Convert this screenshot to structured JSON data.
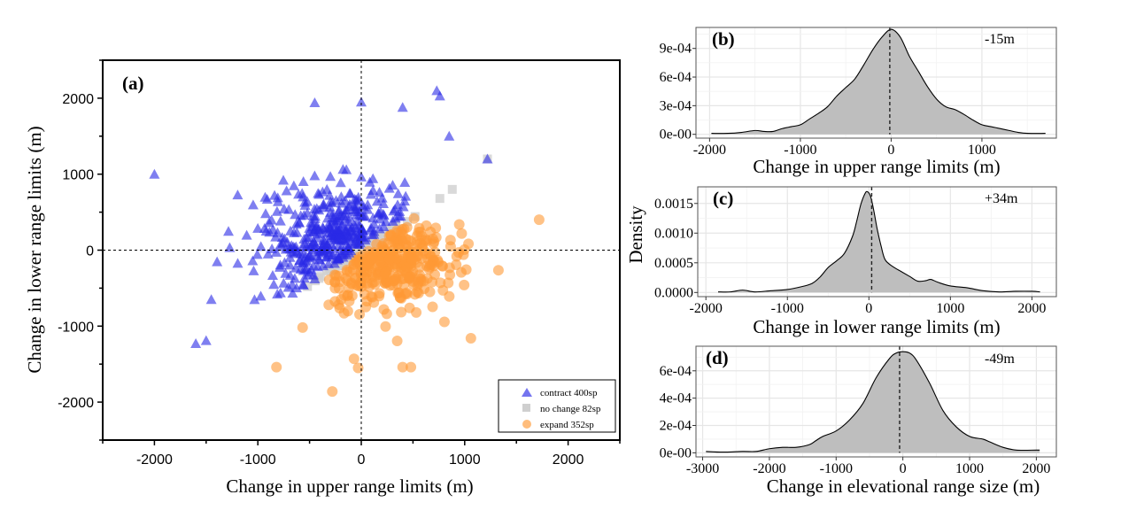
{
  "chart_data": [
    {
      "id": "a",
      "type": "scatter",
      "panel_label": "(a)",
      "xlabel": "Change in upper range limits (m)",
      "ylabel": "Change in lower range limits (m)",
      "xlim": [
        -2500,
        2500
      ],
      "ylim": [
        -2500,
        2500
      ],
      "xticks": [
        -2000,
        -1000,
        0,
        1000,
        2000
      ],
      "yticks": [
        -2000,
        -1000,
        0,
        1000,
        2000
      ],
      "grid": false,
      "reference_lines": {
        "x": 0,
        "y": 0,
        "style": "dashed"
      },
      "legend_position": "bottom-right",
      "series": [
        {
          "name": "contract 400sp",
          "marker": "triangle",
          "color": "#2a2ae6",
          "count": 400
        },
        {
          "name": "no change 82sp",
          "marker": "square",
          "color": "#cfcfcf",
          "count": 82
        },
        {
          "name": "expand 352sp",
          "marker": "circle",
          "color": "#ff9a35",
          "count": 352
        }
      ],
      "notable_points": {
        "contract": [
          [
            -2000,
            1000
          ],
          [
            -1600,
            -1230
          ],
          [
            -1500,
            -1190
          ],
          [
            -1450,
            -650
          ],
          [
            -450,
            1940
          ],
          [
            0,
            1950
          ],
          [
            730,
            2100
          ],
          [
            760,
            2030
          ],
          [
            400,
            1880
          ],
          [
            850,
            1500
          ],
          [
            1220,
            1200
          ]
        ],
        "no_change": [
          [
            1220,
            1200
          ],
          [
            880,
            800
          ],
          [
            760,
            680
          ]
        ],
        "expand": [
          [
            1720,
            400
          ],
          [
            -820,
            -1540
          ],
          [
            -280,
            -1860
          ],
          [
            -30,
            -1550
          ],
          [
            -70,
            -1430
          ],
          [
            400,
            -1540
          ],
          [
            480,
            -1540
          ],
          [
            1060,
            -1160
          ]
        ]
      }
    },
    {
      "id": "b",
      "type": "area",
      "panel_label": "(b)",
      "annotation": "-15m",
      "median_line_x": -15,
      "xlabel": "Change in upper range limits (m)",
      "ylabel": "",
      "xlim": [
        -2150,
        1820
      ],
      "ylim": [
        -4e-05,
        0.00112
      ],
      "xticks": [
        -2000,
        -1000,
        0,
        1000
      ],
      "xtick_labels": [
        "-2000",
        "-1000",
        "0",
        "1000"
      ],
      "yticks": [
        0,
        0.0003,
        0.0006,
        0.0009
      ],
      "ytick_labels": [
        "0e-00",
        "3e-04",
        "6e-04",
        "9e-04"
      ],
      "grid": true,
      "x": [
        -1980,
        -1800,
        -1650,
        -1500,
        -1400,
        -1300,
        -1200,
        -1100,
        -1000,
        -900,
        -800,
        -700,
        -600,
        -500,
        -400,
        -300,
        -200,
        -100,
        0,
        100,
        200,
        300,
        400,
        500,
        600,
        700,
        800,
        900,
        1000,
        1100,
        1200,
        1300,
        1400,
        1500,
        1700
      ],
      "y": [
        1e-05,
        1e-05,
        2e-05,
        4e-05,
        3e-05,
        3e-05,
        6e-05,
        8e-05,
        0.0001,
        0.00016,
        0.00022,
        0.00029,
        0.0004,
        0.00049,
        0.00058,
        0.00073,
        0.00089,
        0.00102,
        0.0011,
        0.00102,
        0.00082,
        0.00066,
        0.0005,
        0.00037,
        0.00029,
        0.00026,
        0.00021,
        0.00015,
        0.0001,
        8e-05,
        6e-05,
        4e-05,
        2e-05,
        1e-05,
        1e-05
      ]
    },
    {
      "id": "c",
      "type": "area",
      "panel_label": "(c)",
      "annotation": "+34m",
      "median_line_x": 34,
      "xlabel": "Change in lower range limits (m)",
      "ylabel": "Density",
      "xlim": [
        -2100,
        2300
      ],
      "ylim": [
        -7e-05,
        0.00178
      ],
      "xticks": [
        -2000,
        -1000,
        0,
        1000,
        2000
      ],
      "xtick_labels": [
        "-2000",
        "-1000",
        "0",
        "1000",
        "2000"
      ],
      "yticks": [
        0,
        0.0005,
        0.001,
        0.0015
      ],
      "ytick_labels": [
        "0.0000",
        "0.0005",
        "0.0010",
        "0.0015"
      ],
      "grid": true,
      "x": [
        -1850,
        -1700,
        -1550,
        -1400,
        -1200,
        -1000,
        -850,
        -700,
        -600,
        -500,
        -400,
        -300,
        -200,
        -150,
        -100,
        -50,
        -20,
        20,
        60,
        100,
        150,
        200,
        300,
        400,
        500,
        600,
        700,
        760,
        850,
        1000,
        1200,
        1400,
        1600,
        1800,
        2000,
        2100
      ],
      "y": [
        1e-05,
        1e-05,
        4e-05,
        1e-05,
        3e-05,
        5e-05,
        9e-05,
        0.00015,
        0.00026,
        0.00042,
        0.00053,
        0.00066,
        0.00095,
        0.0012,
        0.00148,
        0.00166,
        0.0017,
        0.00162,
        0.00138,
        0.00108,
        0.00078,
        0.00055,
        0.00043,
        0.00035,
        0.00027,
        0.00019,
        0.0002,
        0.00022,
        0.00017,
        0.00011,
        8e-05,
        3e-05,
        1e-05,
        2e-05,
        2e-05,
        1e-05
      ]
    },
    {
      "id": "d",
      "type": "area",
      "panel_label": "(d)",
      "annotation": "-49m",
      "median_line_x": -49,
      "xlabel": "Change in elevational range size (m)",
      "ylabel": "",
      "xlim": [
        -3100,
        2300
      ],
      "ylim": [
        -3e-05,
        0.00078
      ],
      "xticks": [
        -3000,
        -2000,
        -1000,
        0,
        1000,
        2000
      ],
      "xtick_labels": [
        "-3000",
        "-2000",
        "-1000",
        "0",
        "1000",
        "2000"
      ],
      "yticks": [
        0,
        0.0002,
        0.0004,
        0.0006
      ],
      "ytick_labels": [
        "0e-00",
        "2e-04",
        "4e-04",
        "6e-04"
      ],
      "grid": true,
      "x": [
        -2950,
        -2700,
        -2400,
        -2200,
        -2000,
        -1800,
        -1600,
        -1400,
        -1300,
        -1200,
        -1000,
        -800,
        -600,
        -400,
        -200,
        -100,
        0,
        100,
        200,
        400,
        600,
        800,
        1000,
        1200,
        1300,
        1500,
        1700,
        2000,
        2050
      ],
      "y": [
        1e-05,
        5e-06,
        1e-05,
        1e-05,
        3e-05,
        4e-05,
        4e-05,
        6e-05,
        9e-05,
        0.00012,
        0.00016,
        0.00024,
        0.00036,
        0.00055,
        0.00069,
        0.00073,
        0.00074,
        0.00073,
        0.00068,
        0.00051,
        0.00031,
        0.00019,
        0.00012,
        0.0001,
        8e-05,
        4e-05,
        2e-05,
        2e-05,
        2e-05
      ]
    }
  ]
}
